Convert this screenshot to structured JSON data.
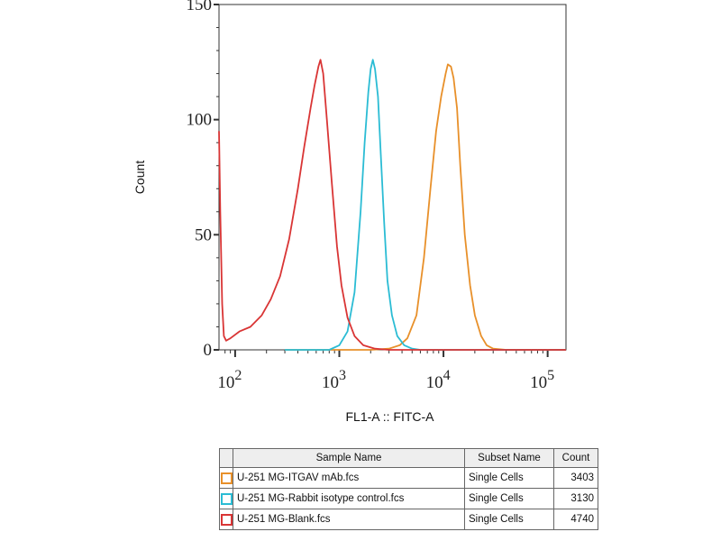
{
  "chart_data": {
    "type": "line",
    "title": "",
    "xlabel": "FL1-A :: FITC-A",
    "ylabel": "Count",
    "x_scale": "log",
    "xlim": [
      70,
      150000
    ],
    "ylim": [
      0,
      150
    ],
    "y_ticks": [
      0,
      50,
      100,
      150
    ],
    "x_ticks": [
      {
        "value": 100,
        "base": "10",
        "exp": "2"
      },
      {
        "value": 1000,
        "base": "10",
        "exp": "3"
      },
      {
        "value": 10000,
        "base": "10",
        "exp": "4"
      },
      {
        "value": 100000,
        "base": "10",
        "exp": "5"
      }
    ],
    "grid": false,
    "series": [
      {
        "color": "#e8902a",
        "x": [
          300,
          2000,
          3000,
          3800,
          4500,
          5500,
          6500,
          7500,
          8500,
          9500,
          10500,
          11000,
          11800,
          12500,
          13500,
          14500,
          16000,
          18000,
          20000,
          23000,
          26000,
          30000,
          40000,
          60000,
          150000
        ],
        "y": [
          0,
          0,
          0.5,
          2,
          5,
          15,
          40,
          70,
          95,
          110,
          120,
          124,
          123,
          118,
          105,
          80,
          50,
          28,
          15,
          6,
          2,
          0.5,
          0,
          0,
          0
        ]
      },
      {
        "color": "#2bbcd4",
        "x": [
          300,
          800,
          1000,
          1200,
          1400,
          1600,
          1750,
          1900,
          2000,
          2100,
          2200,
          2350,
          2500,
          2700,
          2900,
          3200,
          3600,
          4200,
          5000,
          6000,
          150000
        ],
        "y": [
          0,
          0,
          2,
          8,
          25,
          60,
          90,
          112,
          122,
          126,
          122,
          110,
          85,
          55,
          30,
          15,
          6,
          2,
          0.5,
          0,
          0
        ]
      },
      {
        "color": "#d93535",
        "x": [
          70,
          72,
          75,
          78,
          82,
          90,
          110,
          140,
          180,
          220,
          270,
          330,
          400,
          460,
          530,
          580,
          630,
          660,
          700,
          760,
          850,
          950,
          1050,
          1200,
          1400,
          1700,
          2200,
          3000,
          150000
        ],
        "y": [
          95,
          60,
          20,
          6,
          4,
          5,
          8,
          10,
          15,
          22,
          32,
          48,
          70,
          88,
          105,
          115,
          123,
          126,
          120,
          100,
          72,
          45,
          28,
          14,
          6,
          2,
          0.5,
          0,
          0
        ]
      }
    ]
  },
  "legend_table": {
    "headers": [
      "",
      "Sample Name",
      "Subset Name",
      "Count"
    ],
    "rows": [
      {
        "color": "#e8902a",
        "sample": "U-251 MG-ITGAV mAb.fcs",
        "subset": "Single Cells",
        "count": "3403"
      },
      {
        "color": "#2bbcd4",
        "sample": "U-251 MG-Rabbit isotype control.fcs",
        "subset": "Single Cells",
        "count": "3130"
      },
      {
        "color": "#d93535",
        "sample": "U-251 MG-Blank.fcs",
        "subset": "Single Cells",
        "count": "4740"
      }
    ]
  }
}
